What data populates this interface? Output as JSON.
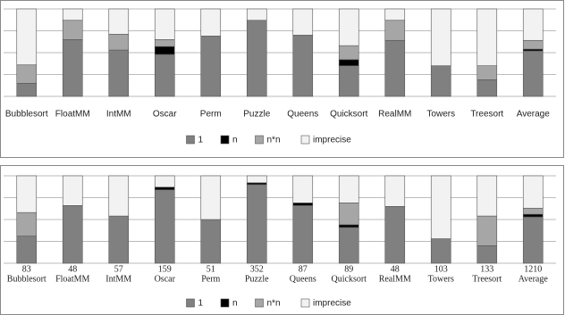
{
  "chart_data": [
    {
      "type": "stacked_bar",
      "categories": [
        "Bubblesort",
        "FloatMM",
        "IntMM",
        "Oscar",
        "Perm",
        "Puzzle",
        "Queens",
        "Quicksort",
        "RealMM",
        "Towers",
        "Treesort",
        "Average"
      ],
      "series": [
        {
          "name": "1",
          "color": "#808080",
          "values": [
            15,
            65,
            53,
            48,
            69,
            87,
            70,
            35,
            64,
            35,
            19,
            52
          ]
        },
        {
          "name": "n",
          "color": "#000000",
          "values": [
            0,
            0,
            0,
            9,
            0,
            0,
            0,
            7,
            0,
            0,
            0,
            2
          ]
        },
        {
          "name": "n*n",
          "color": "#a6a6a6",
          "values": [
            21,
            22,
            18,
            8,
            0,
            0,
            0,
            16,
            23,
            0,
            16,
            10
          ]
        },
        {
          "name": "imprecise",
          "color": "#f2f2f2",
          "values": [
            64,
            13,
            29,
            35,
            31,
            13,
            30,
            42,
            13,
            65,
            65,
            36
          ]
        }
      ],
      "ylim": [
        0,
        100
      ],
      "yticks": [
        0,
        25,
        50,
        75,
        100
      ],
      "grid": true,
      "legend": "bottom"
    },
    {
      "type": "stacked_bar",
      "categories": [
        "Bubblesort",
        "FloatMM",
        "IntMM",
        "Oscar",
        "Perm",
        "Puzzle",
        "Queens",
        "Quicksort",
        "RealMM",
        "Towers",
        "Treesort",
        "Average"
      ],
      "category_counts": [
        83,
        48,
        57,
        159,
        51,
        352,
        87,
        89,
        48,
        103,
        133,
        1210
      ],
      "series": [
        {
          "name": "1",
          "color": "#808080",
          "values": [
            31,
            66,
            54,
            84,
            50,
            90,
            66,
            41,
            65,
            28,
            20,
            53
          ]
        },
        {
          "name": "n",
          "color": "#000000",
          "values": [
            0,
            0,
            0,
            3,
            0,
            2,
            3,
            3,
            0,
            0,
            0,
            3
          ]
        },
        {
          "name": "n*n",
          "color": "#a6a6a6",
          "values": [
            27,
            0,
            0,
            0,
            0,
            0,
            0,
            25,
            0,
            0,
            34,
            7
          ]
        },
        {
          "name": "imprecise",
          "color": "#f2f2f2",
          "values": [
            42,
            34,
            46,
            13,
            50,
            8,
            31,
            31,
            35,
            72,
            46,
            37
          ]
        }
      ],
      "ylim": [
        0,
        100
      ],
      "yticks": [
        0,
        25,
        50,
        75,
        100
      ],
      "grid": true,
      "legend": "bottom"
    }
  ]
}
